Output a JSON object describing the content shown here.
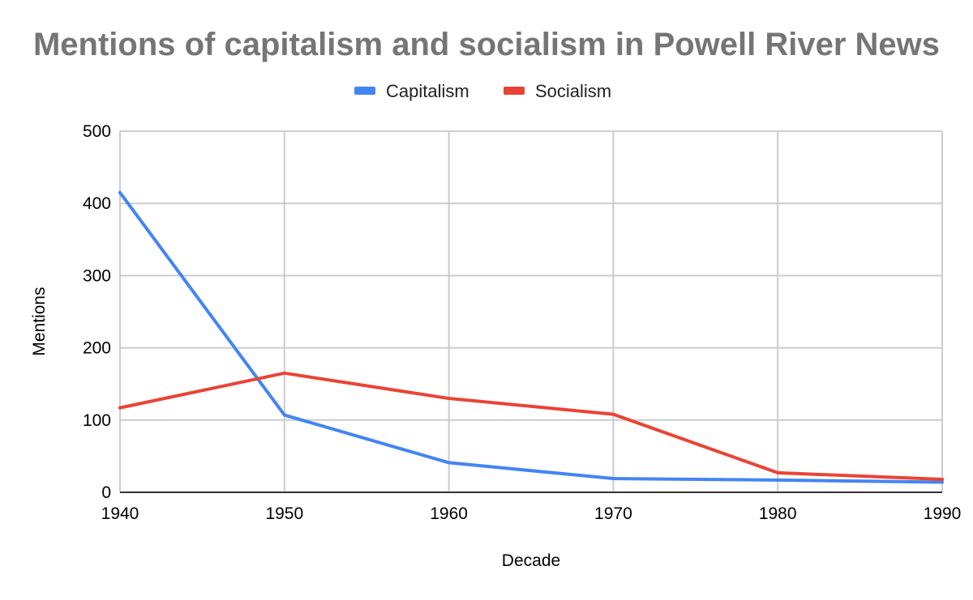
{
  "chart_data": {
    "type": "line",
    "title": "Mentions of capitalism and socialism in Powell River News",
    "xlabel": "Decade",
    "ylabel": "Mentions",
    "x": [
      1940,
      1950,
      1960,
      1970,
      1980,
      1990
    ],
    "x_ticks": [
      "1940",
      "1950",
      "1960",
      "1970",
      "1980",
      "1990"
    ],
    "y_ticks": [
      "0",
      "100",
      "200",
      "300",
      "400",
      "500"
    ],
    "ylim": [
      0,
      500
    ],
    "xlim": [
      1940,
      1990
    ],
    "grid": true,
    "legend_position": "top",
    "series": [
      {
        "name": "Capitalism",
        "color": "#4285F4",
        "values": [
          415,
          107,
          41,
          19,
          17,
          14
        ]
      },
      {
        "name": "Socialism",
        "color": "#EA4335",
        "values": [
          117,
          165,
          130,
          108,
          27,
          18
        ]
      }
    ]
  }
}
